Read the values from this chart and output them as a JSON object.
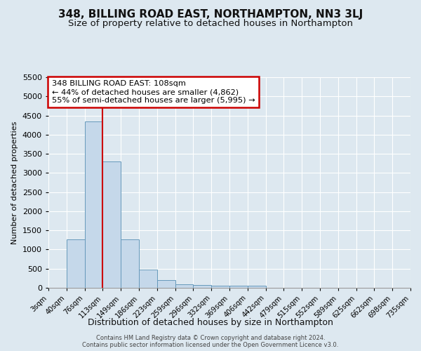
{
  "title": "348, BILLING ROAD EAST, NORTHAMPTON, NN3 3LJ",
  "subtitle": "Size of property relative to detached houses in Northampton",
  "xlabel": "Distribution of detached houses by size in Northampton",
  "ylabel": "Number of detached properties",
  "bin_labels": [
    "3sqm",
    "40sqm",
    "76sqm",
    "113sqm",
    "149sqm",
    "186sqm",
    "223sqm",
    "259sqm",
    "296sqm",
    "332sqm",
    "369sqm",
    "406sqm",
    "442sqm",
    "479sqm",
    "515sqm",
    "552sqm",
    "589sqm",
    "625sqm",
    "662sqm",
    "698sqm",
    "735sqm"
  ],
  "bar_heights": [
    0,
    1270,
    4350,
    3300,
    1270,
    480,
    210,
    100,
    75,
    55,
    55,
    55,
    0,
    0,
    0,
    0,
    0,
    0,
    0,
    0,
    0
  ],
  "bar_color": "#c5d8ea",
  "bar_edge_color": "#6699bb",
  "red_line_color": "#cc0000",
  "annotation_line1": "348 BILLING ROAD EAST: 108sqm",
  "annotation_line2": "← 44% of detached houses are smaller (4,862)",
  "annotation_line3": "55% of semi-detached houses are larger (5,995) →",
  "annotation_box_color": "#ffffff",
  "annotation_box_edge_color": "#cc0000",
  "ylim_max": 5500,
  "background_color": "#dde8f0",
  "grid_color": "#ffffff",
  "footer_text1": "Contains HM Land Registry data © Crown copyright and database right 2024.",
  "footer_text2": "Contains public sector information licensed under the Open Government Licence v3.0.",
  "title_fontsize": 11,
  "subtitle_fontsize": 9.5,
  "yticks": [
    0,
    500,
    1000,
    1500,
    2000,
    2500,
    3000,
    3500,
    4000,
    4500,
    5000,
    5500
  ]
}
